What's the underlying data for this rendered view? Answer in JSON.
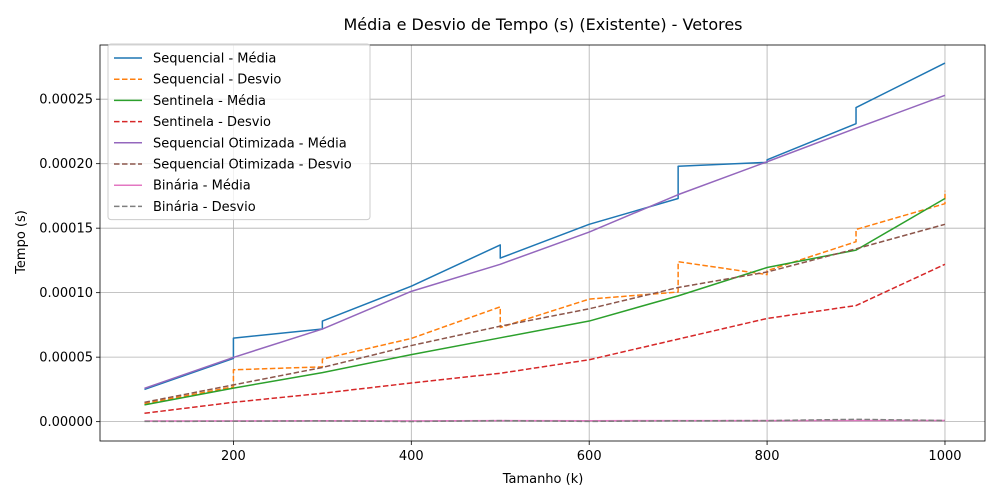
{
  "chart_data": {
    "type": "line",
    "title": "Média e Desvio de Tempo (s) (Existente) - Vetores",
    "xlabel": "Tamanho (k)",
    "ylabel": "Tempo (s)",
    "xlim": [
      50,
      1045
    ],
    "ylim": [
      -1.5e-05,
      0.000292
    ],
    "xticks": [
      200,
      400,
      600,
      800,
      1000
    ],
    "yticks": [
      0,
      5e-05,
      0.0001,
      0.00015,
      0.0002,
      0.00025
    ],
    "xtick_labels": [
      "200",
      "400",
      "600",
      "800",
      "1000"
    ],
    "ytick_labels": [
      "0.00000",
      "0.00005",
      "0.00010",
      "0.00015",
      "0.00020",
      "0.00025"
    ],
    "grid": true,
    "legend_position": "top-left",
    "series": [
      {
        "name": "Sequencial - Média",
        "color": "#1f77b4",
        "dashed": false,
        "points": [
          [
            100,
            2.5e-05
          ],
          [
            200,
            4.9e-05
          ],
          [
            200,
            6.48e-05
          ],
          [
            300,
            7.18e-05
          ],
          [
            300,
            7.8e-05
          ],
          [
            400,
            0.000105
          ],
          [
            500,
            0.000137
          ],
          [
            500,
            0.0001268
          ],
          [
            600,
            0.000153
          ],
          [
            700,
            0.000173
          ],
          [
            700,
            0.000198
          ],
          [
            800,
            0.000201
          ],
          [
            800,
            0.000203
          ],
          [
            900,
            0.000231
          ],
          [
            900,
            0.0002435
          ],
          [
            1000,
            0.000278
          ]
        ]
      },
      {
        "name": "Sequencial - Desvio",
        "color": "#ff7f0e",
        "dashed": true,
        "points": [
          [
            100,
            1.4e-05
          ],
          [
            200,
            2.7e-05
          ],
          [
            200,
            4.02e-05
          ],
          [
            300,
            4.25e-05
          ],
          [
            300,
            4.85e-05
          ],
          [
            400,
            6.45e-05
          ],
          [
            500,
            8.9e-05
          ],
          [
            500,
            7.3e-05
          ],
          [
            600,
            9.5e-05
          ],
          [
            700,
            0.0001005
          ],
          [
            700,
            0.000124
          ],
          [
            800,
            0.000114
          ],
          [
            800,
            0.000117
          ],
          [
            900,
            0.0001395
          ],
          [
            900,
            0.000149
          ],
          [
            1000,
            0.000169
          ],
          [
            1000,
            0.000179
          ]
        ]
      },
      {
        "name": "Sentinela - Média",
        "color": "#2ca02c",
        "dashed": false,
        "points": [
          [
            100,
            1.3e-05
          ],
          [
            200,
            2.6e-05
          ],
          [
            300,
            3.8e-05
          ],
          [
            400,
            5.2e-05
          ],
          [
            500,
            6.5e-05
          ],
          [
            600,
            7.8e-05
          ],
          [
            700,
            9.75e-05
          ],
          [
            800,
            0.0001195
          ],
          [
            900,
            0.000133
          ],
          [
            1000,
            0.000173
          ]
        ]
      },
      {
        "name": "Sentinela - Desvio",
        "color": "#d62728",
        "dashed": true,
        "points": [
          [
            100,
            6.5e-06
          ],
          [
            200,
            1.5e-05
          ],
          [
            300,
            2.2e-05
          ],
          [
            400,
            3e-05
          ],
          [
            500,
            3.75e-05
          ],
          [
            600,
            4.8e-05
          ],
          [
            700,
            6.4e-05
          ],
          [
            800,
            8e-05
          ],
          [
            900,
            9e-05
          ],
          [
            1000,
            0.000122
          ]
        ]
      },
      {
        "name": "Sequencial Otimizada - Média",
        "color": "#9467bd",
        "dashed": false,
        "points": [
          [
            100,
            2.58e-05
          ],
          [
            200,
            4.98e-05
          ],
          [
            300,
            7.18e-05
          ],
          [
            400,
            0.000101
          ],
          [
            500,
            0.000122
          ],
          [
            600,
            0.000147
          ],
          [
            700,
            0.000176
          ],
          [
            800,
            0.0002015
          ],
          [
            900,
            0.0002275
          ],
          [
            1000,
            0.000253
          ]
        ]
      },
      {
        "name": "Sequencial Otimizada - Desvio",
        "color": "#8c564b",
        "dashed": true,
        "points": [
          [
            100,
            1.5e-05
          ],
          [
            200,
            2.85e-05
          ],
          [
            300,
            4.2e-05
          ],
          [
            400,
            5.9e-05
          ],
          [
            500,
            7.4e-05
          ],
          [
            600,
            8.75e-05
          ],
          [
            700,
            0.000104
          ],
          [
            800,
            0.000116
          ],
          [
            900,
            0.000134
          ],
          [
            1000,
            0.000153
          ]
        ]
      },
      {
        "name": "Binária - Média",
        "color": "#e377c2",
        "dashed": false,
        "points": [
          [
            100,
            5e-07
          ],
          [
            200,
            6e-07
          ],
          [
            300,
            7e-07
          ],
          [
            400,
            6e-07
          ],
          [
            500,
            8e-07
          ],
          [
            600,
            7e-07
          ],
          [
            700,
            8e-07
          ],
          [
            800,
            8e-07
          ],
          [
            900,
            9e-07
          ],
          [
            1000,
            9e-07
          ]
        ]
      },
      {
        "name": "Binária - Desvio",
        "color": "#7f7f7f",
        "dashed": true,
        "points": [
          [
            100,
            2e-07
          ],
          [
            200,
            3e-07
          ],
          [
            300,
            6e-07
          ],
          [
            400,
            1e-07
          ],
          [
            500,
            8e-07
          ],
          [
            600,
            2e-07
          ],
          [
            700,
            7e-07
          ],
          [
            800,
            8e-07
          ],
          [
            900,
            1.8e-06
          ],
          [
            1000,
            9e-07
          ]
        ]
      }
    ]
  }
}
